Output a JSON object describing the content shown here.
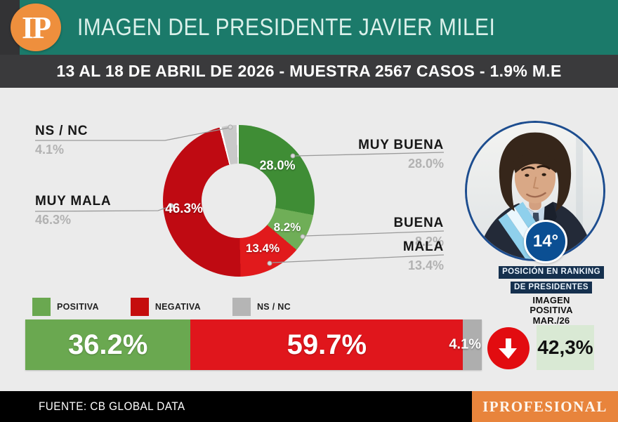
{
  "header": {
    "logo": "IP",
    "title": "IMAGEN DEL PRESIDENTE JAVIER MILEI",
    "subtitle": "13 AL 18 DE ABRIL DE 2026 - MUESTRA 2567 CASOS - 1.9% M.E"
  },
  "chart_data": [
    {
      "type": "pie",
      "variant": "donut",
      "title": "IMAGEN DEL PRESIDENTE JAVIER MILEI",
      "subtitle": "13 AL 18 DE ABRIL DE 2026 - MUESTRA 2567 CASOS - 1.9% M.E",
      "start_angle_deg": 0,
      "direction": "clockwise",
      "segments": [
        {
          "label": "MUY BUENA",
          "value": 28.0,
          "display": "28.0%",
          "color": "#3f8d35"
        },
        {
          "label": "BUENA",
          "value": 8.2,
          "display": "8.2%",
          "color": "#6fae57"
        },
        {
          "label": "MALA",
          "value": 13.4,
          "display": "13.4%",
          "color": "#e11a1c"
        },
        {
          "label": "MUY MALA",
          "value": 46.3,
          "display": "46.3%",
          "color": "#bf0a12"
        },
        {
          "label": "NS / NC",
          "value": 4.1,
          "display": "4.1%",
          "color": "#c9c9c9",
          "sep": true
        }
      ]
    },
    {
      "type": "bar",
      "variant": "stacked-horizontal",
      "legend": [
        {
          "label": "POSITIVA",
          "color": "#6aa850"
        },
        {
          "label": "NEGATIVA",
          "color": "#c50d0d"
        },
        {
          "label": "NS / NC",
          "color": "#b5b5b5"
        }
      ],
      "segments": [
        {
          "label": "POSITIVA",
          "value": 36.2,
          "display": "36.2%",
          "color": "#6aa850"
        },
        {
          "label": "NEGATIVA",
          "value": 59.7,
          "display": "59.7%",
          "color": "#e0161c"
        },
        {
          "label": "NS / NC",
          "value": 4.1,
          "display": "4.1%",
          "color": "#aeaeae"
        }
      ]
    }
  ],
  "ranking": {
    "rank": "14°",
    "line1": "POSICIÓN EN RANKING",
    "line2": "DE PRESIDENTES"
  },
  "previous": {
    "line1": "IMAGEN",
    "line2": "POSITIVA",
    "line3": "MAR./26",
    "value": "42,3%",
    "trend": "down"
  },
  "footer": {
    "source": "FUENTE: CB GLOBAL DATA",
    "brand": "IPROFESIONAL"
  },
  "colors": {
    "header_green": "#1b7a6a",
    "header_dark": "#3a3a3c",
    "logo_orange": "#ee8f3d",
    "background": "#ebebeb",
    "trend_red": "#e20c10",
    "prev_box_green": "#d9e9d4",
    "brand_orange": "#e8843c",
    "badge_blue": "#0b4f93"
  }
}
